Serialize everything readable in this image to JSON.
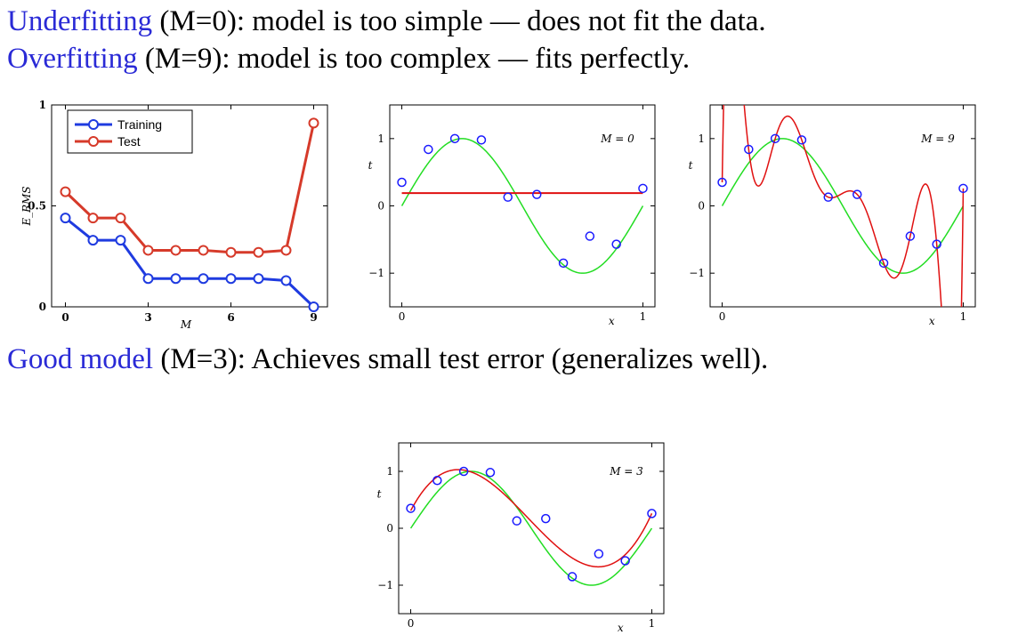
{
  "text": {
    "line1": {
      "highlight": "Underfitting",
      "rest": " (M=0): model is too simple — does not fit the data."
    },
    "line2": {
      "highlight": "Overfitting",
      "rest": " (M=9): model is too complex — fits perfectly."
    },
    "line3": {
      "highlight": "Good model",
      "rest": " (M=3): Achieves small test error (generalizes well)."
    }
  },
  "colors": {
    "highlight": "#2a2ad6",
    "training": "#1f3be0",
    "test": "#d63a2a",
    "fit": "#e01010",
    "true_curve": "#22dd22",
    "points": "#1a1aff"
  },
  "chart_data": [
    {
      "type": "line",
      "xlabel": "M",
      "ylabel": "E_RMS",
      "xlim": [
        -0.5,
        9.5
      ],
      "ylim": [
        0,
        1
      ],
      "xticks": [
        0,
        3,
        6,
        9
      ],
      "yticks": [
        0,
        0.5,
        1
      ],
      "x": [
        0,
        1,
        2,
        3,
        4,
        5,
        6,
        7,
        8,
        9
      ],
      "series": [
        {
          "name": "Training",
          "values": [
            0.44,
            0.33,
            0.33,
            0.14,
            0.14,
            0.14,
            0.14,
            0.14,
            0.13,
            0.0
          ]
        },
        {
          "name": "Test",
          "values": [
            0.57,
            0.44,
            0.44,
            0.28,
            0.28,
            0.28,
            0.27,
            0.27,
            0.28,
            0.91
          ]
        }
      ],
      "legend": "top-left",
      "grid": false
    },
    {
      "type": "line",
      "annotation": "M = 0",
      "xlabel": "x",
      "ylabel": "t",
      "xlim": [
        -0.05,
        1.05
      ],
      "ylim": [
        -1.5,
        1.5
      ],
      "xticks": [
        0,
        1
      ],
      "yticks": [
        -1,
        0,
        1
      ],
      "points": [
        [
          0.0,
          0.35
        ],
        [
          0.11,
          0.84
        ],
        [
          0.22,
          1.0
        ],
        [
          0.33,
          0.98
        ],
        [
          0.44,
          0.13
        ],
        [
          0.56,
          0.17
        ],
        [
          0.67,
          -0.85
        ],
        [
          0.78,
          -0.45
        ],
        [
          0.89,
          -0.57
        ],
        [
          1.0,
          0.26
        ]
      ],
      "fit_order": 0,
      "fit_coefficients": [
        0.19
      ]
    },
    {
      "type": "line",
      "annotation": "M = 9",
      "xlabel": "x",
      "ylabel": "t",
      "xlim": [
        -0.05,
        1.05
      ],
      "ylim": [
        -1.5,
        1.5
      ],
      "xticks": [
        0,
        1
      ],
      "yticks": [
        -1,
        0,
        1
      ],
      "points": [
        [
          0.0,
          0.35
        ],
        [
          0.11,
          0.84
        ],
        [
          0.22,
          1.0
        ],
        [
          0.33,
          0.98
        ],
        [
          0.44,
          0.13
        ],
        [
          0.56,
          0.17
        ],
        [
          0.67,
          -0.85
        ],
        [
          0.78,
          -0.45
        ],
        [
          0.89,
          -0.57
        ],
        [
          1.0,
          0.26
        ]
      ],
      "fit_order": 9,
      "fit_interpolates_points": true
    },
    {
      "type": "line",
      "annotation": "M = 3",
      "xlabel": "x",
      "ylabel": "t",
      "xlim": [
        -0.05,
        1.05
      ],
      "ylim": [
        -1.5,
        1.5
      ],
      "xticks": [
        0,
        1
      ],
      "yticks": [
        -1,
        0,
        1
      ],
      "points": [
        [
          0.0,
          0.35
        ],
        [
          0.11,
          0.84
        ],
        [
          0.22,
          1.0
        ],
        [
          0.33,
          0.98
        ],
        [
          0.44,
          0.13
        ],
        [
          0.56,
          0.17
        ],
        [
          0.67,
          -0.85
        ],
        [
          0.78,
          -0.45
        ],
        [
          0.89,
          -0.57
        ],
        [
          1.0,
          0.26
        ]
      ],
      "fit_order": 3,
      "fit_coefficients": [
        0.31,
        7.99,
        -25.43,
        17.39
      ]
    }
  ]
}
